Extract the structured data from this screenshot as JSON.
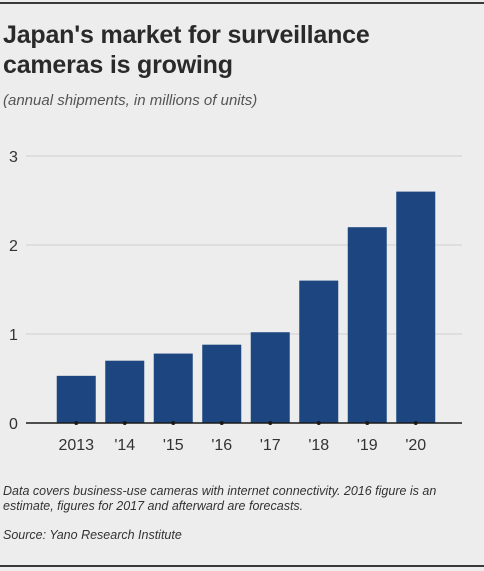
{
  "header": {
    "title": "Japan's market for surveillance cameras is growing",
    "subtitle": "(annual shipments, in millions of units)"
  },
  "footer": {
    "note": "Data covers business-use cameras with internet connectivity. 2016 figure is an estimate, figures for 2017 and afterward are forecasts.",
    "source": "Source: Yano Research Institute"
  },
  "colors": {
    "bar": "#1d4681",
    "grid": "#cfcfcf",
    "baseline": "#1a1a1a"
  },
  "chart_data": {
    "type": "bar",
    "title": "Japan's market for surveillance cameras is growing",
    "subtitle": "(annual shipments, in millions of units)",
    "categories": [
      "2013",
      "'14",
      "'15",
      "'16",
      "'17",
      "'18",
      "'19",
      "'20"
    ],
    "values": [
      0.53,
      0.7,
      0.78,
      0.88,
      1.02,
      1.6,
      2.2,
      2.6
    ],
    "ylim": [
      0,
      3
    ],
    "yticks": [
      0,
      1,
      2,
      3
    ],
    "xlabel": "",
    "ylabel": "",
    "grid": true,
    "legend": "none"
  }
}
